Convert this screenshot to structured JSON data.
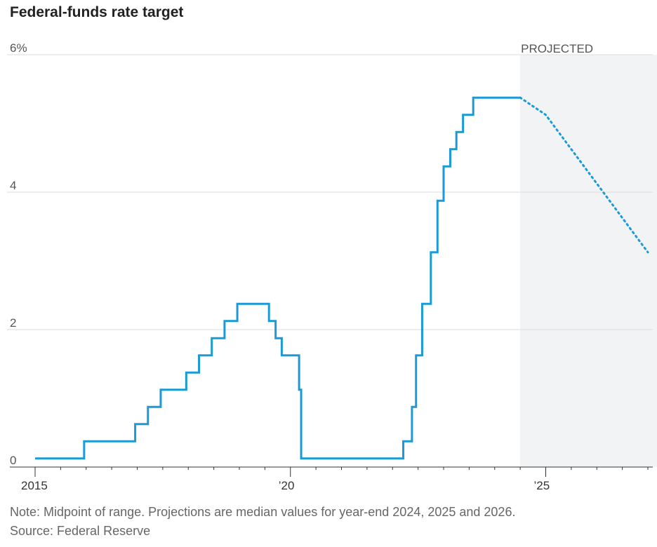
{
  "title": "Federal-funds rate target",
  "note": "Note: Midpoint of range. Projections are median values for year-end 2024, 2025 and 2026.",
  "source": "Source: Federal Reserve",
  "colors": {
    "line": "#1a9ad6",
    "projected_band": "#f2f3f5",
    "grid": "#dddddd",
    "text": "#555555"
  },
  "chart_data": {
    "type": "line",
    "title": "Federal-funds rate target",
    "xlabel": "",
    "ylabel": "",
    "xlim": [
      2015.0,
      2027.0
    ],
    "ylim": [
      0,
      6
    ],
    "grid": true,
    "y_ticks": [
      {
        "value": 0,
        "label": "0"
      },
      {
        "value": 2,
        "label": "2"
      },
      {
        "value": 4,
        "label": "4"
      },
      {
        "value": 6,
        "label": "6%"
      }
    ],
    "x_ticks": [
      {
        "value": 2015.0,
        "label": "2015"
      },
      {
        "value": 2020.0,
        "label": "’20"
      },
      {
        "value": 2025.0,
        "label": "’25"
      }
    ],
    "projected_region": {
      "label": "PROJECTED",
      "start": 2024.5,
      "end": 2027.0
    },
    "series": [
      {
        "style": "step",
        "points": [
          [
            2015.0,
            0.125
          ],
          [
            2015.96,
            0.375
          ],
          [
            2016.96,
            0.625
          ],
          [
            2017.21,
            0.875
          ],
          [
            2017.46,
            1.125
          ],
          [
            2017.96,
            1.375
          ],
          [
            2018.21,
            1.625
          ],
          [
            2018.46,
            1.875
          ],
          [
            2018.71,
            2.125
          ],
          [
            2018.96,
            2.375
          ],
          [
            2019.58,
            2.125
          ],
          [
            2019.71,
            1.875
          ],
          [
            2019.83,
            1.625
          ],
          [
            2020.17,
            1.125
          ],
          [
            2020.21,
            0.125
          ],
          [
            2022.21,
            0.375
          ],
          [
            2022.38,
            0.875
          ],
          [
            2022.46,
            1.625
          ],
          [
            2022.58,
            2.375
          ],
          [
            2022.75,
            3.125
          ],
          [
            2022.88,
            3.875
          ],
          [
            2023.0,
            4.375
          ],
          [
            2023.13,
            4.625
          ],
          [
            2023.25,
            4.875
          ],
          [
            2023.38,
            5.125
          ],
          [
            2023.58,
            5.375
          ],
          [
            2024.5,
            5.375
          ]
        ]
      },
      {
        "style": "dotted",
        "points": [
          [
            2024.5,
            5.375
          ],
          [
            2025.0,
            5.125
          ],
          [
            2027.0,
            3.125
          ]
        ]
      }
    ]
  }
}
